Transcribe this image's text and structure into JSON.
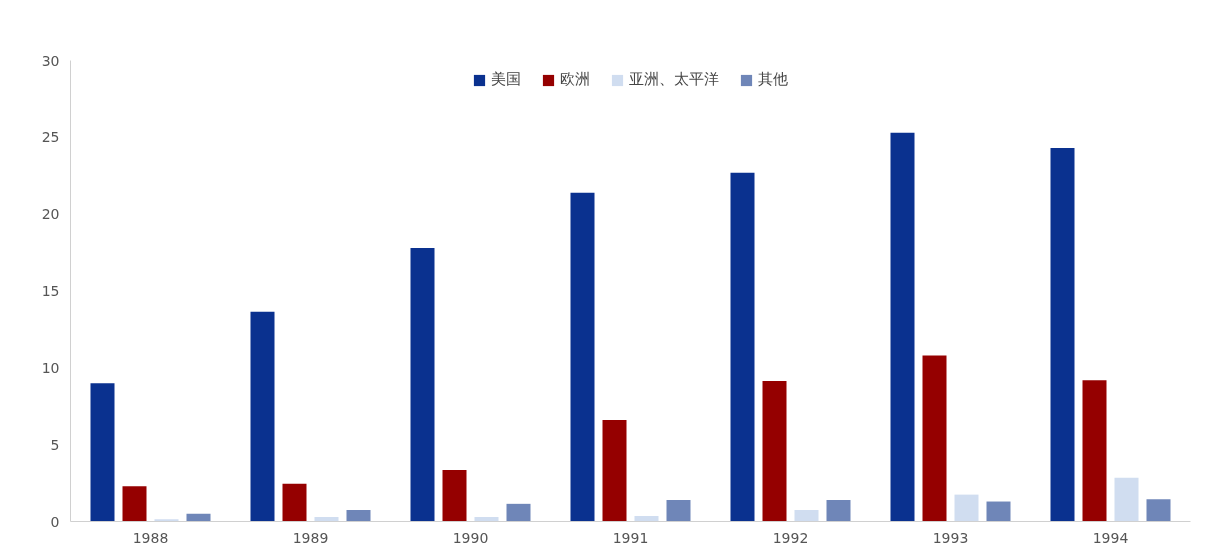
{
  "chart_data": {
    "type": "bar",
    "categories": [
      "1988",
      "1989",
      "1990",
      "1991",
      "1992",
      "1993",
      "1994"
    ],
    "series": [
      {
        "name": "美国",
        "color": "#0a318f",
        "values": [
          9.0,
          13.65,
          17.8,
          21.4,
          22.7,
          25.3,
          24.3
        ]
      },
      {
        "name": "欧洲",
        "color": "#950000",
        "values": [
          2.3,
          2.45,
          3.35,
          6.6,
          9.15,
          10.8,
          9.2
        ]
      },
      {
        "name": "亚洲、太平洋",
        "color": "#d0ddf0",
        "values": [
          0.15,
          0.3,
          0.3,
          0.35,
          0.75,
          1.75,
          2.85
        ]
      },
      {
        "name": "其他",
        "color": "#6f86b8",
        "values": [
          0.5,
          0.75,
          1.15,
          1.4,
          1.4,
          1.3,
          1.45
        ]
      }
    ],
    "ylim": [
      0,
      30
    ],
    "yticks": [
      0,
      5,
      10,
      15,
      20,
      25,
      30
    ],
    "grid": false,
    "legend": "top"
  }
}
